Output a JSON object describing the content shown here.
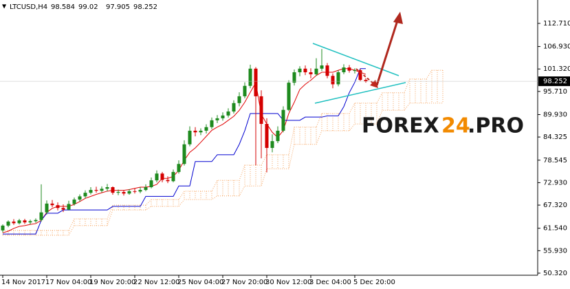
{
  "chart_data": {
    "type": "candlestick",
    "symbol": "LTCUSD,H4",
    "watermark": [
      "FOREX",
      "24",
      ".PRO"
    ],
    "ylim": [
      49.8,
      118.55
    ],
    "yticks": [
      {
        "value": 112.71,
        "label": "112.710"
      },
      {
        "value": 106.93,
        "label": "106.930"
      },
      {
        "value": 101.32,
        "label": "101.320"
      },
      {
        "value": 95.71,
        "label": "95.710"
      },
      {
        "value": 89.93,
        "label": "89.930"
      },
      84.325,
      78.545,
      {
        "value": 72.93,
        "label": "72.930"
      },
      {
        "value": 67.32,
        "label": "67.320"
      },
      {
        "value": 61.54,
        "label": "61.540"
      },
      {
        "value": 55.93,
        "label": "55.930"
      },
      {
        "value": 50.32,
        "label": "50.320"
      }
    ],
    "grid": false,
    "up_color": "#1e8a1e",
    "down_color": "#d40000",
    "categories": [
      "14 Nov 2017",
      null,
      null,
      null,
      null,
      null,
      null,
      null,
      "17 Nov 04:00",
      null,
      null,
      null,
      null,
      null,
      null,
      null,
      "19 Nov 20:00",
      null,
      null,
      null,
      null,
      null,
      null,
      null,
      "22 Nov 12:00",
      null,
      null,
      null,
      null,
      null,
      null,
      null,
      "25 Nov 04:00",
      null,
      null,
      null,
      null,
      null,
      null,
      null,
      "27 Nov 20:00",
      null,
      null,
      null,
      null,
      null,
      null,
      null,
      "30 Nov 12:00",
      null,
      null,
      null,
      null,
      null,
      null,
      null,
      "3 Dec 04:00",
      null,
      null,
      null,
      null,
      null,
      null,
      null,
      "5 Dec 20:00",
      null,
      null,
      null,
      null,
      null,
      null,
      null,
      null,
      null,
      null,
      null,
      null,
      null,
      null,
      null,
      null
    ],
    "open": [
      61.0,
      62.2,
      63.2,
      62.8,
      63.5,
      63.0,
      63.3,
      63.6,
      65.5,
      67.7,
      67.3,
      66.6,
      66.2,
      67.6,
      68.7,
      69.5,
      70.4,
      71.1,
      70.9,
      71.4,
      71.8,
      70.4,
      70.6,
      70.2,
      70.8,
      70.7,
      71.1,
      71.8,
      73.5,
      75.2,
      73.6,
      73.3,
      75.6,
      77.6,
      82.5,
      85.9,
      85.5,
      85.9,
      86.8,
      88.5,
      89.0,
      89.7,
      90.7,
      92.8,
      94.5,
      97.1,
      101.4,
      94.5,
      87.6,
      81.6,
      83.3,
      85.9,
      91.1,
      97.9,
      100.5,
      101.4,
      100.5,
      100.0,
      101.4,
      102.2,
      99.6,
      97.5,
      100.5,
      101.7,
      100.9,
      101.0,
      98.584,
      null,
      null,
      null,
      null,
      null,
      null,
      null,
      null,
      null,
      null,
      null,
      null,
      null,
      null
    ],
    "high": [
      62.5,
      63.5,
      63.8,
      63.9,
      63.9,
      63.7,
      64.0,
      72.5,
      68.5,
      68.6,
      68.0,
      67.5,
      68.4,
      69.2,
      70.0,
      71.0,
      71.8,
      71.9,
      72.0,
      72.6,
      72.0,
      71.2,
      71.1,
      71.3,
      71.5,
      71.8,
      72.5,
      74.2,
      76.0,
      75.6,
      74.5,
      76.2,
      78.5,
      83.5,
      87.0,
      86.8,
      86.5,
      87.5,
      89.2,
      89.8,
      90.5,
      91.5,
      93.5,
      95.5,
      98.0,
      102.4,
      101.8,
      96.0,
      89.0,
      85.0,
      87.0,
      92.0,
      98.5,
      101.2,
      102.0,
      102.2,
      101.5,
      104.0,
      106.3,
      102.8,
      100.2,
      101.0,
      102.5,
      102.3,
      101.5,
      101.4,
      99.02,
      null,
      null,
      null,
      null,
      null,
      null,
      null,
      null,
      null,
      null,
      null,
      null,
      null,
      null
    ],
    "low": [
      60.5,
      61.8,
      62.4,
      62.5,
      62.6,
      62.5,
      62.9,
      63.2,
      65.0,
      66.8,
      66.0,
      65.6,
      66.0,
      67.2,
      68.2,
      69.0,
      70.0,
      70.4,
      70.5,
      70.8,
      69.9,
      69.8,
      69.7,
      69.9,
      70.2,
      70.3,
      70.8,
      71.5,
      73.0,
      73.0,
      72.8,
      73.0,
      75.2,
      77.2,
      82.0,
      84.5,
      84.8,
      85.2,
      86.3,
      87.8,
      88.4,
      89.2,
      90.2,
      92.0,
      94.0,
      96.5,
      77.3,
      79.0,
      75.5,
      80.5,
      82.8,
      85.5,
      90.8,
      97.2,
      99.5,
      99.8,
      99.0,
      99.6,
      100.8,
      99.0,
      96.5,
      97.0,
      100.0,
      100.4,
      100.2,
      98.3,
      97.905,
      null,
      null,
      null,
      null,
      null,
      null,
      null,
      null,
      null,
      null,
      null,
      null,
      null,
      null
    ],
    "close": [
      62.2,
      63.2,
      62.8,
      63.5,
      63.0,
      63.3,
      63.6,
      65.5,
      67.7,
      67.3,
      66.6,
      66.2,
      67.6,
      68.7,
      69.5,
      70.4,
      71.1,
      70.9,
      71.4,
      71.8,
      70.4,
      70.6,
      70.2,
      70.8,
      70.7,
      71.1,
      71.8,
      73.5,
      75.2,
      73.6,
      73.3,
      75.6,
      77.6,
      82.5,
      85.9,
      85.5,
      85.9,
      86.8,
      88.5,
      89.0,
      89.7,
      90.7,
      92.8,
      94.5,
      97.1,
      101.4,
      94.5,
      87.6,
      81.6,
      83.3,
      85.9,
      91.1,
      97.9,
      100.5,
      101.4,
      100.5,
      100.0,
      101.4,
      102.2,
      99.6,
      97.5,
      100.5,
      101.7,
      100.9,
      101.0,
      98.584,
      98.252,
      null,
      null,
      null,
      null,
      null,
      null,
      null,
      null,
      null,
      null,
      null,
      null,
      null,
      null
    ],
    "lines": [
      {
        "color": "#e00000",
        "values": [
          60.4,
          60.8,
          61.5,
          62.0,
          62.2,
          62.5,
          62.7,
          63.5,
          65.5,
          66.5,
          67.0,
          67.0,
          67.0,
          67.5,
          68.2,
          69.0,
          69.5,
          70.0,
          70.4,
          70.8,
          71.0,
          71.0,
          71.0,
          71.2,
          71.5,
          71.8,
          71.8,
          72.0,
          72.5,
          74.0,
          74.0,
          74.5,
          76.0,
          78.5,
          80.5,
          81.6,
          83.0,
          84.5,
          86.0,
          86.8,
          87.5,
          88.5,
          89.5,
          91.0,
          93.0,
          95.5,
          97.9,
          90.0,
          87.6,
          85.5,
          84.2,
          86.0,
          90.2,
          93.0,
          96.2,
          97.5,
          98.5,
          99.7,
          100.5,
          100.5,
          100.5,
          101.0,
          101.4,
          101.4,
          101.0,
          100.5,
          100.0,
          null,
          null,
          null,
          null,
          null,
          null,
          null,
          null,
          null,
          null,
          null,
          null,
          null,
          null
        ]
      },
      {
        "color": "#0000d0",
        "values": [
          60.1,
          60.1,
          60.1,
          60.1,
          60.1,
          60.1,
          60.1,
          63.5,
          65.3,
          65.3,
          65.3,
          66.1,
          66.1,
          66.1,
          66.1,
          66.1,
          66.1,
          66.1,
          66.1,
          66.1,
          67.0,
          67.0,
          67.0,
          67.0,
          67.0,
          67.0,
          69.5,
          69.5,
          69.5,
          69.5,
          69.5,
          69.5,
          72.1,
          72.1,
          72.1,
          78.2,
          78.2,
          78.2,
          78.2,
          79.9,
          79.9,
          79.9,
          79.9,
          82.5,
          85.9,
          90.2,
          90.2,
          90.2,
          90.2,
          90.2,
          90.2,
          88.5,
          88.5,
          88.5,
          88.5,
          89.3,
          89.3,
          89.3,
          89.3,
          89.6,
          89.6,
          89.6,
          91.9,
          95.4,
          98.0,
          101.4,
          101.4,
          null,
          null,
          null,
          null,
          null,
          null,
          null,
          null,
          null,
          null,
          null,
          null,
          null,
          null
        ]
      }
    ],
    "cloud": {
      "color": "#f5a05a",
      "upper": [
        61.0,
        61.0,
        61.0,
        61.0,
        61.0,
        61.0,
        61.0,
        61.0,
        61.0,
        61.0,
        61.0,
        61.0,
        61.0,
        63.9,
        63.9,
        63.9,
        63.9,
        63.9,
        63.9,
        63.9,
        67.3,
        67.3,
        67.3,
        67.3,
        67.3,
        67.3,
        67.3,
        68.7,
        68.7,
        68.7,
        68.7,
        68.7,
        68.7,
        70.8,
        70.8,
        70.8,
        70.8,
        70.8,
        70.8,
        73.5,
        73.5,
        73.5,
        73.5,
        73.5,
        77.3,
        77.3,
        77.3,
        77.3,
        79.9,
        79.9,
        79.9,
        79.9,
        79.9,
        86.8,
        86.8,
        86.8,
        86.8,
        86.8,
        90.2,
        90.2,
        90.2,
        90.2,
        90.2,
        90.2,
        92.8,
        92.8,
        92.8,
        92.8,
        92.8,
        95.4,
        95.4,
        95.4,
        95.4,
        95.4,
        98.8,
        98.8,
        98.8,
        98.8,
        101.0,
        101.0,
        101.0
      ],
      "lower": [
        59.8,
        59.8,
        59.8,
        59.8,
        59.8,
        59.8,
        59.8,
        59.8,
        59.8,
        59.8,
        59.8,
        59.8,
        59.8,
        62.2,
        62.2,
        62.2,
        62.2,
        62.2,
        62.2,
        62.2,
        66.1,
        66.1,
        66.1,
        66.1,
        66.1,
        66.1,
        66.1,
        67.0,
        67.0,
        67.0,
        67.0,
        67.0,
        67.0,
        68.7,
        68.7,
        68.7,
        68.7,
        68.7,
        68.7,
        69.6,
        69.6,
        69.6,
        69.6,
        69.6,
        72.1,
        72.1,
        72.1,
        72.1,
        76.4,
        76.4,
        76.4,
        76.4,
        76.4,
        82.5,
        82.5,
        82.5,
        82.5,
        82.5,
        85.9,
        85.9,
        85.9,
        85.9,
        85.9,
        85.9,
        87.6,
        87.6,
        87.6,
        87.6,
        87.6,
        91.0,
        91.0,
        91.0,
        91.0,
        91.0,
        92.8,
        92.8,
        92.8,
        92.8,
        92.8,
        92.8,
        92.8
      ]
    }
  }
}
